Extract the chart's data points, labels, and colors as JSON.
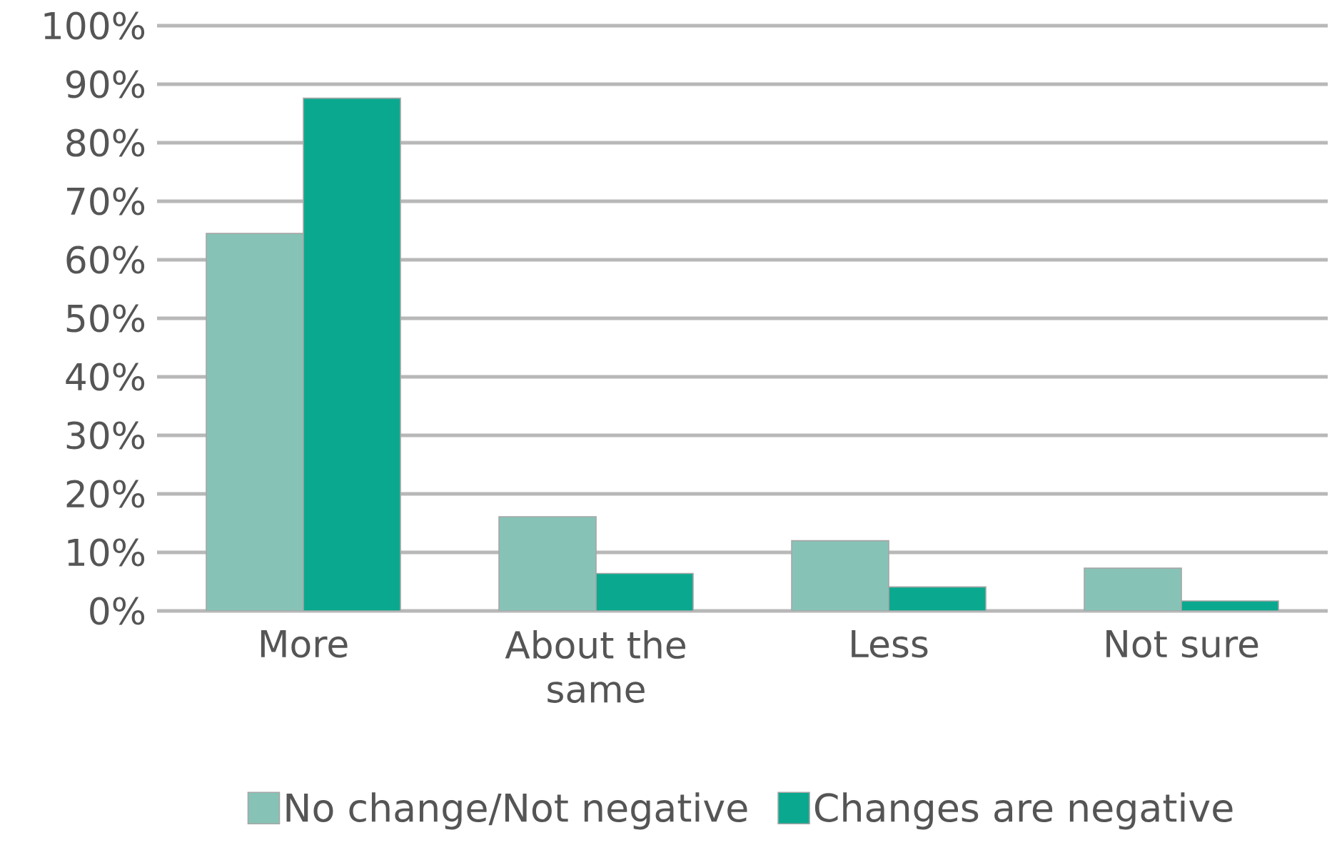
{
  "chart_data": {
    "type": "bar",
    "categories": [
      "More",
      "About the same",
      "Less",
      "Not sure"
    ],
    "series": [
      {
        "name": "No change/Not negative",
        "color": "#86c3b6",
        "values": [
          64.5,
          16.1,
          12.0,
          7.3
        ]
      },
      {
        "name": "Changes are negative",
        "color": "#0aa98f",
        "values": [
          87.6,
          6.4,
          4.1,
          1.7
        ]
      }
    ],
    "ylim": [
      0,
      100
    ],
    "yticks": [
      {
        "value": 0,
        "label": "0%"
      },
      {
        "value": 10,
        "label": "10%"
      },
      {
        "value": 20,
        "label": "20%"
      },
      {
        "value": 30,
        "label": "30%"
      },
      {
        "value": 40,
        "label": "40%"
      },
      {
        "value": 50,
        "label": "50%"
      },
      {
        "value": 60,
        "label": "60%"
      },
      {
        "value": 70,
        "label": "70%"
      },
      {
        "value": 80,
        "label": "80%"
      },
      {
        "value": 90,
        "label": "90%"
      },
      {
        "value": 100,
        "label": "100%"
      }
    ],
    "grid": "y",
    "legend": "bottom"
  }
}
